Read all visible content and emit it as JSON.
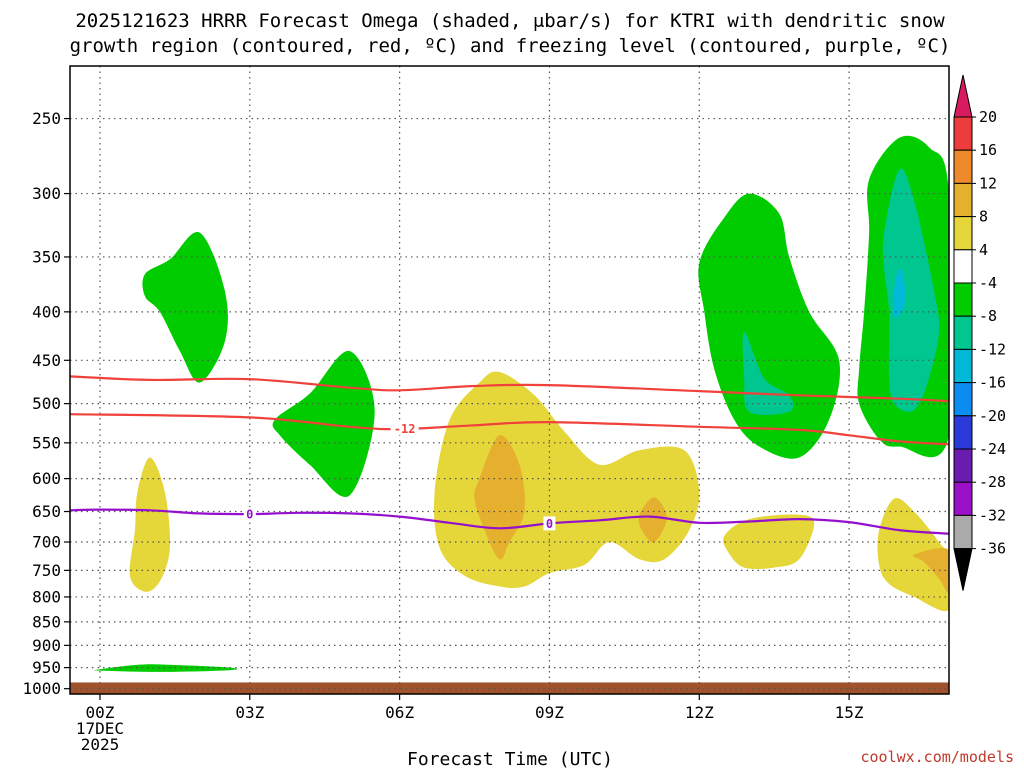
{
  "chart_data": {
    "type": "time-height cross-section",
    "title_lines": [
      "2025121623 HRRR Forecast Omega (shaded, μbar/s) for KTRI with dendritic snow",
      "growth region (contoured, red, ºC) and freezing level (contoured, purple, ºC)"
    ],
    "xlabel": "Forecast Time (UTC)",
    "credit": "coolwx.com/models",
    "x_ticks": [
      {
        "hour": 0,
        "lines": [
          "00Z",
          "17DEC",
          "2025"
        ]
      },
      {
        "hour": 3,
        "lines": [
          "03Z"
        ]
      },
      {
        "hour": 6,
        "lines": [
          "06Z"
        ]
      },
      {
        "hour": 9,
        "lines": [
          "09Z"
        ]
      },
      {
        "hour": 12,
        "lines": [
          "12Z"
        ]
      },
      {
        "hour": 15,
        "lines": [
          "15Z"
        ]
      }
    ],
    "xlim": [
      -0.6,
      17
    ],
    "ylim_hpa": [
      1013,
      220
    ],
    "y_ticks": [
      250,
      300,
      350,
      400,
      450,
      500,
      550,
      600,
      650,
      700,
      750,
      800,
      850,
      900,
      950,
      1000
    ],
    "ground_top_hpa": 985,
    "colorbar": {
      "label_values": [
        20,
        16,
        12,
        8,
        4,
        -4,
        -8,
        -12,
        -16,
        -20,
        -24,
        -28,
        -32,
        -36
      ],
      "bins": [
        {
          "color": "#d81b60"
        },
        {
          "color": "#ee3b3b"
        },
        {
          "color": "#ee8a2a"
        },
        {
          "color": "#e5b02e"
        },
        {
          "color": "#e5d63a"
        },
        {
          "color": "#ffffff"
        },
        {
          "color": "#00cc00"
        },
        {
          "color": "#00c68f"
        },
        {
          "color": "#00b8d8"
        },
        {
          "color": "#0a8cf0"
        },
        {
          "color": "#2a3ad8"
        },
        {
          "color": "#6a1bb0"
        },
        {
          "color": "#9a10c8"
        },
        {
          "color": "#aaaaaa"
        },
        {
          "color": "#000000"
        }
      ]
    },
    "contours": [
      {
        "name": "dgz-warm-edge",
        "value": -12,
        "color": "#f0413a",
        "label": "",
        "points": [
          [
            -0.6,
            468
          ],
          [
            1,
            472
          ],
          [
            3,
            471
          ],
          [
            5,
            481
          ],
          [
            6,
            484
          ],
          [
            7.5,
            479
          ],
          [
            9,
            478
          ],
          [
            12,
            485
          ],
          [
            14,
            490
          ],
          [
            16,
            494
          ],
          [
            17,
            497
          ]
        ]
      },
      {
        "name": "dgz-cold-edge",
        "value": -12,
        "color": "#f0413a",
        "label": "-12",
        "points": [
          [
            -0.6,
            513
          ],
          [
            3,
            517
          ],
          [
            5,
            529
          ],
          [
            6,
            532
          ],
          [
            7.5,
            527
          ],
          [
            9,
            523
          ],
          [
            12,
            529
          ],
          [
            14,
            533
          ],
          [
            15,
            540
          ],
          [
            16,
            548
          ],
          [
            17,
            552
          ]
        ]
      },
      {
        "name": "freezing-level",
        "value": 0,
        "color": "#9410cc",
        "label": "0",
        "points": [
          [
            -0.6,
            648
          ],
          [
            0,
            647
          ],
          [
            1,
            648
          ],
          [
            2,
            653
          ],
          [
            3,
            654
          ],
          [
            4,
            652
          ],
          [
            5,
            653
          ],
          [
            6,
            658
          ],
          [
            7,
            668
          ],
          [
            8,
            677
          ],
          [
            9,
            669
          ],
          [
            10,
            664
          ],
          [
            11,
            658
          ],
          [
            12,
            668
          ],
          [
            13,
            666
          ],
          [
            14,
            662
          ],
          [
            15,
            667
          ],
          [
            16,
            680
          ],
          [
            17,
            686
          ]
        ]
      }
    ],
    "contour_labels": [
      {
        "text": "-12",
        "hour": 6.1,
        "hpa": 531,
        "color": "#f0413a"
      },
      {
        "text": "0",
        "hour": 3.0,
        "hpa": 654,
        "color": "#9410cc"
      },
      {
        "text": "0",
        "hour": 9.0,
        "hpa": 669,
        "color": "#9410cc"
      }
    ],
    "omega_regions": [
      {
        "name": "green-upper-left",
        "color": "#00cc00",
        "points": [
          [
            0.9,
            365
          ],
          [
            1.4,
            352
          ],
          [
            2.0,
            330
          ],
          [
            2.5,
            380
          ],
          [
            2.5,
            430
          ],
          [
            2.0,
            475
          ],
          [
            1.6,
            440
          ],
          [
            1.2,
            400
          ],
          [
            0.9,
            385
          ]
        ]
      },
      {
        "name": "green-mid",
        "color": "#00cc00",
        "points": [
          [
            3.5,
            520
          ],
          [
            4.2,
            488
          ],
          [
            5.0,
            440
          ],
          [
            5.5,
            510
          ],
          [
            5.0,
            625
          ],
          [
            4.2,
            580
          ],
          [
            3.6,
            540
          ]
        ]
      },
      {
        "name": "green-near-surface",
        "color": "#00cc00",
        "points": [
          [
            0.0,
            954
          ],
          [
            0.8,
            943
          ],
          [
            1.5,
            944
          ],
          [
            2.6,
            950
          ],
          [
            2.6,
            956
          ],
          [
            1.2,
            960
          ],
          [
            0.0,
            957
          ]
        ]
      },
      {
        "name": "green-12z",
        "color": "#00cc00",
        "points": [
          [
            12.0,
            355
          ],
          [
            12.5,
            318
          ],
          [
            13.0,
            300
          ],
          [
            13.6,
            315
          ],
          [
            13.8,
            350
          ],
          [
            14.2,
            400
          ],
          [
            14.8,
            450
          ],
          [
            14.6,
            520
          ],
          [
            14.0,
            570
          ],
          [
            13.2,
            555
          ],
          [
            12.7,
            520
          ],
          [
            12.3,
            460
          ],
          [
            12.1,
            400
          ]
        ]
      },
      {
        "name": "teal-12z",
        "color": "#00c68f",
        "points": [
          [
            12.9,
            420
          ],
          [
            13.3,
            470
          ],
          [
            13.8,
            490
          ],
          [
            13.8,
            510
          ],
          [
            13.0,
            510
          ],
          [
            12.9,
            470
          ]
        ]
      },
      {
        "name": "green-16z",
        "color": "#00cc00",
        "points": [
          [
            15.4,
            290
          ],
          [
            16.0,
            262
          ],
          [
            16.6,
            268
          ],
          [
            17.0,
            300
          ],
          [
            17.0,
            540
          ],
          [
            16.0,
            555
          ],
          [
            15.6,
            545
          ],
          [
            15.2,
            500
          ],
          [
            15.2,
            460
          ],
          [
            15.3,
            400
          ],
          [
            15.4,
            330
          ]
        ]
      },
      {
        "name": "teal-16z",
        "color": "#00c68f",
        "points": [
          [
            15.7,
            330
          ],
          [
            16.0,
            283
          ],
          [
            16.3,
            305
          ],
          [
            16.7,
            380
          ],
          [
            16.8,
            420
          ],
          [
            16.6,
            470
          ],
          [
            16.4,
            500
          ],
          [
            16.2,
            510
          ],
          [
            15.9,
            500
          ],
          [
            15.8,
            470
          ],
          [
            15.8,
            400
          ],
          [
            15.7,
            360
          ]
        ]
      },
      {
        "name": "cyan-16z",
        "color": "#00b8d8",
        "points": [
          [
            15.9,
            380
          ],
          [
            16.0,
            360
          ],
          [
            16.1,
            370
          ],
          [
            16.1,
            395
          ],
          [
            15.9,
            405
          ]
        ]
      },
      {
        "name": "yellow-01z",
        "color": "#e5d63a",
        "points": [
          [
            0.75,
            620
          ],
          [
            1.0,
            570
          ],
          [
            1.3,
            620
          ],
          [
            1.4,
            710
          ],
          [
            1.2,
            770
          ],
          [
            0.9,
            790
          ],
          [
            0.6,
            760
          ],
          [
            0.7,
            680
          ]
        ]
      },
      {
        "name": "yellow-08z",
        "color": "#e5d63a",
        "points": [
          [
            7.0,
            520
          ],
          [
            7.6,
            475
          ],
          [
            8.0,
            463
          ],
          [
            8.7,
            490
          ],
          [
            9.3,
            535
          ],
          [
            10.0,
            580
          ],
          [
            10.8,
            560
          ],
          [
            11.7,
            560
          ],
          [
            12.0,
            620
          ],
          [
            11.8,
            680
          ],
          [
            11.3,
            730
          ],
          [
            10.8,
            730
          ],
          [
            10.2,
            700
          ],
          [
            9.7,
            740
          ],
          [
            9.0,
            755
          ],
          [
            8.5,
            780
          ],
          [
            8.0,
            780
          ],
          [
            7.3,
            760
          ],
          [
            6.8,
            710
          ],
          [
            6.7,
            620
          ]
        ]
      },
      {
        "name": "orange-08z",
        "color": "#e5b02e",
        "points": [
          [
            7.6,
            600
          ],
          [
            8.0,
            540
          ],
          [
            8.4,
            580
          ],
          [
            8.5,
            650
          ],
          [
            8.2,
            700
          ],
          [
            8.0,
            730
          ],
          [
            7.7,
            680
          ],
          [
            7.5,
            630
          ]
        ]
      },
      {
        "name": "orange-11z",
        "color": "#e5b02e",
        "points": [
          [
            10.8,
            655
          ],
          [
            11.1,
            628
          ],
          [
            11.35,
            660
          ],
          [
            11.1,
            700
          ],
          [
            10.85,
            680
          ]
        ]
      },
      {
        "name": "yellow-13z",
        "color": "#e5d63a",
        "points": [
          [
            12.5,
            690
          ],
          [
            13.0,
            662
          ],
          [
            14.0,
            655
          ],
          [
            14.3,
            670
          ],
          [
            14.0,
            730
          ],
          [
            13.5,
            745
          ],
          [
            12.9,
            745
          ],
          [
            12.6,
            720
          ]
        ]
      },
      {
        "name": "yellow-16z",
        "color": "#e5d63a",
        "points": [
          [
            15.6,
            680
          ],
          [
            15.9,
            630
          ],
          [
            16.3,
            650
          ],
          [
            16.8,
            700
          ],
          [
            17.0,
            730
          ],
          [
            17.0,
            825
          ],
          [
            16.3,
            800
          ],
          [
            15.8,
            775
          ],
          [
            15.6,
            740
          ]
        ]
      },
      {
        "name": "orange-16z",
        "color": "#e5b02e",
        "points": [
          [
            16.3,
            722
          ],
          [
            17.0,
            714
          ],
          [
            17.0,
            790
          ],
          [
            16.8,
            765
          ],
          [
            16.5,
            735
          ]
        ]
      }
    ]
  }
}
